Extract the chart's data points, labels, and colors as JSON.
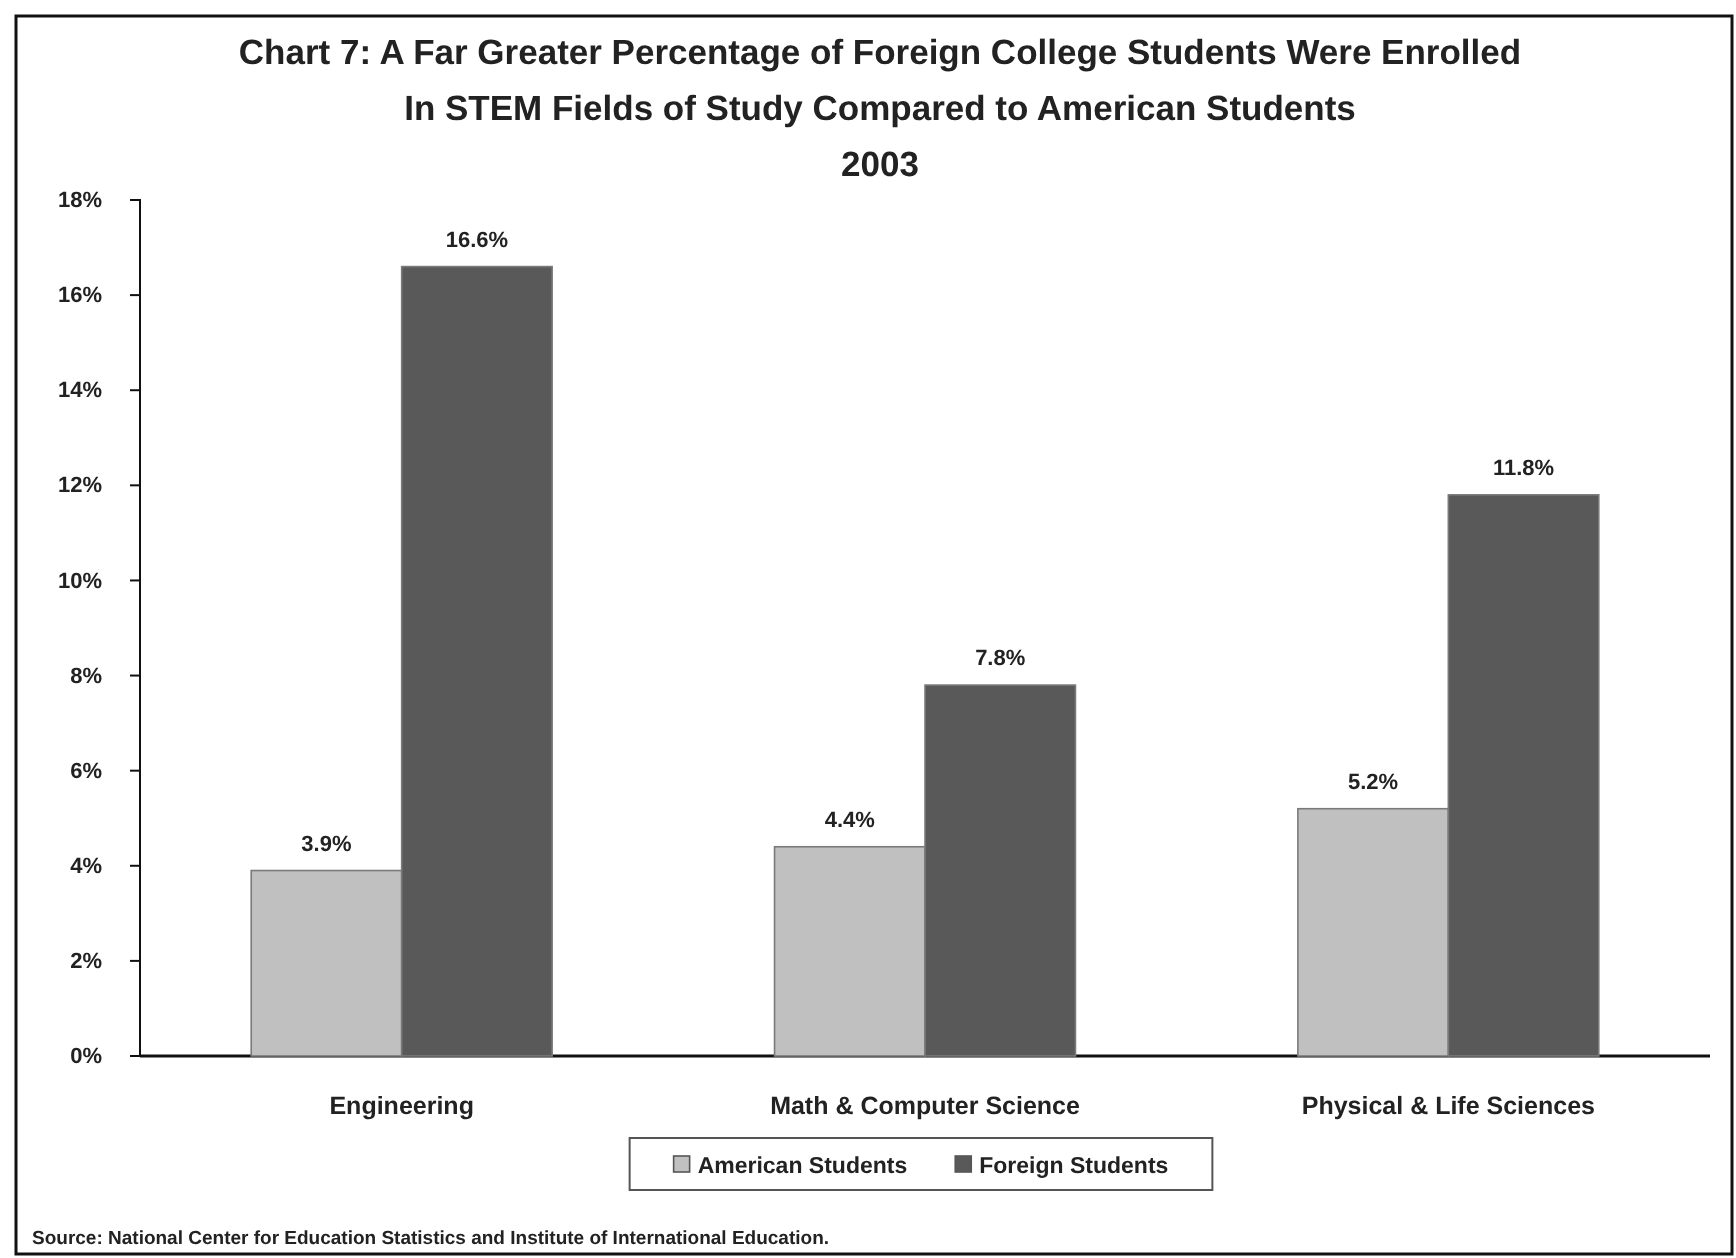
{
  "chart_data": {
    "type": "bar",
    "title": "Chart 7: A Far Greater Percentage of Foreign College Students Were Enrolled In STEM Fields of Study Compared to American Students",
    "subtitle": "2003",
    "categories": [
      "Engineering",
      "Math & Computer Science",
      "Physical & Life Sciences"
    ],
    "series": [
      {
        "name": "American Students",
        "color": "#c0c0c0",
        "values": [
          3.9,
          4.4,
          5.2
        ],
        "value_labels": [
          "3.9%",
          "4.4%",
          "5.2%"
        ]
      },
      {
        "name": "Foreign Students",
        "color": "#595959",
        "values": [
          16.6,
          7.8,
          11.8
        ],
        "value_labels": [
          "16.6%",
          "7.8%",
          "11.8%"
        ]
      }
    ],
    "ylim": [
      0,
      18
    ],
    "yticks": [
      {
        "value": 0,
        "label": "0%"
      },
      {
        "value": 2,
        "label": "2%"
      },
      {
        "value": 4,
        "label": "4%"
      },
      {
        "value": 6,
        "label": "6%"
      },
      {
        "value": 8,
        "label": "8%"
      },
      {
        "value": 10,
        "label": "10%"
      },
      {
        "value": 12,
        "label": "12%"
      },
      {
        "value": 14,
        "label": "14%"
      },
      {
        "value": 16,
        "label": "16%"
      },
      {
        "value": 18,
        "label": "18%"
      }
    ],
    "grid": false,
    "legend": "bottom",
    "annotations": [
      "Source: National Center for Education Statistics and Institute of International Education."
    ]
  }
}
